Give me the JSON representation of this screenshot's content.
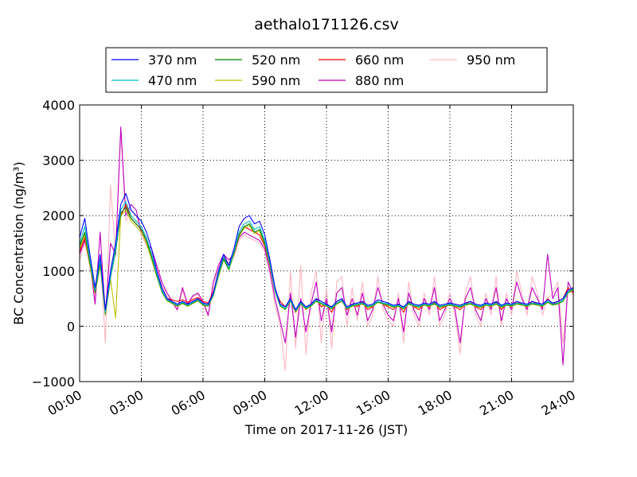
{
  "chart_data": {
    "type": "line",
    "title": "aethalo171126.csv",
    "xlabel": "Time on 2017-11-26 (JST)",
    "ylabel": "BC Concentration (ng/m³)",
    "xlim_hours": [
      0,
      24
    ],
    "ylim": [
      -1000,
      4000
    ],
    "x_ticks": [
      "00:00",
      "03:00",
      "06:00",
      "09:00",
      "12:00",
      "15:00",
      "18:00",
      "21:00",
      "24:00"
    ],
    "y_ticks": [
      "−1000",
      "0",
      "1000",
      "2000",
      "3000",
      "4000"
    ],
    "grid": true,
    "legend_position": "top",
    "x_hours": [
      0.0,
      0.25,
      0.5,
      0.75,
      1.0,
      1.25,
      1.5,
      1.75,
      2.0,
      2.25,
      2.5,
      2.75,
      3.0,
      3.25,
      3.5,
      3.75,
      4.0,
      4.25,
      4.5,
      4.75,
      5.0,
      5.25,
      5.5,
      5.75,
      6.0,
      6.25,
      6.5,
      6.75,
      7.0,
      7.25,
      7.5,
      7.75,
      8.0,
      8.25,
      8.5,
      8.75,
      9.0,
      9.25,
      9.5,
      9.75,
      10.0,
      10.25,
      10.5,
      10.75,
      11.0,
      11.25,
      11.5,
      11.75,
      12.0,
      12.25,
      12.5,
      12.75,
      13.0,
      13.25,
      13.5,
      13.75,
      14.0,
      14.25,
      14.5,
      14.75,
      15.0,
      15.25,
      15.5,
      15.75,
      16.0,
      16.25,
      16.5,
      16.75,
      17.0,
      17.25,
      17.5,
      17.75,
      18.0,
      18.25,
      18.5,
      18.75,
      19.0,
      19.25,
      19.5,
      19.75,
      20.0,
      20.25,
      20.5,
      20.75,
      21.0,
      21.25,
      21.5,
      21.75,
      22.0,
      22.25,
      22.5,
      22.75,
      23.0,
      23.25,
      23.5,
      23.75,
      24.0
    ],
    "series": [
      {
        "name": "370 nm",
        "color": "#0000ff",
        "values": [
          1600,
          1950,
          1300,
          700,
          1300,
          300,
          1000,
          1500,
          2200,
          2400,
          2100,
          2000,
          1900,
          1700,
          1400,
          1000,
          700,
          500,
          450,
          400,
          450,
          400,
          450,
          500,
          420,
          400,
          600,
          1000,
          1300,
          1100,
          1400,
          1800,
          1950,
          2000,
          1850,
          1900,
          1650,
          1200,
          700,
          400,
          350,
          500,
          300,
          450,
          350,
          400,
          500,
          450,
          400,
          350,
          450,
          500,
          350,
          400,
          420,
          450,
          380,
          400,
          480,
          450,
          420,
          380,
          400,
          350,
          450,
          400,
          380,
          420,
          400,
          450,
          380,
          400,
          420,
          400,
          380,
          420,
          450,
          400,
          380,
          420,
          400,
          450,
          380,
          420,
          400,
          450,
          420,
          400,
          450,
          420,
          400,
          480,
          420,
          450,
          500,
          650,
          700
        ],
        "min_spike": null
      },
      {
        "name": "470 nm",
        "color": "#00bfbf",
        "values": [
          1500,
          1800,
          1200,
          650,
          1200,
          250,
          900,
          1400,
          2100,
          2250,
          2000,
          1900,
          1800,
          1600,
          1300,
          950,
          650,
          480,
          430,
          380,
          430,
          380,
          430,
          480,
          400,
          380,
          570,
          950,
          1250,
          1050,
          1350,
          1700,
          1850,
          1900,
          1750,
          1800,
          1550,
          1150,
          650,
          380,
          320,
          470,
          280,
          420,
          330,
          380,
          470,
          420,
          380,
          330,
          420,
          470,
          330,
          380,
          400,
          420,
          360,
          380,
          450,
          420,
          400,
          360,
          380,
          330,
          420,
          380,
          360,
          400,
          380,
          420,
          360,
          380,
          400,
          380,
          360,
          400,
          420,
          380,
          360,
          400,
          380,
          420,
          360,
          400,
          380,
          420,
          400,
          380,
          420,
          400,
          380,
          450,
          400,
          420,
          470,
          620,
          680
        ]
      },
      {
        "name": "520 nm",
        "color": "#008000",
        "values": [
          1450,
          1700,
          1150,
          620,
          1150,
          230,
          880,
          1350,
          2050,
          2150,
          1950,
          1850,
          1750,
          1550,
          1250,
          920,
          630,
          470,
          420,
          370,
          420,
          370,
          420,
          470,
          390,
          370,
          560,
          920,
          1220,
          1030,
          1320,
          1650,
          1800,
          1850,
          1700,
          1750,
          1500,
          1120,
          640,
          370,
          310,
          460,
          270,
          410,
          320,
          370,
          460,
          410,
          370,
          320,
          410,
          460,
          320,
          370,
          390,
          410,
          350,
          370,
          440,
          410,
          390,
          350,
          370,
          320,
          410,
          370,
          350,
          390,
          370,
          410,
          350,
          370,
          390,
          370,
          350,
          390,
          410,
          370,
          350,
          390,
          370,
          410,
          350,
          390,
          370,
          410,
          390,
          370,
          410,
          390,
          370,
          440,
          390,
          410,
          460,
          610,
          670
        ]
      },
      {
        "name": "590 nm",
        "color": "#bfbf00",
        "values": [
          1400,
          1650,
          1100,
          600,
          1100,
          200,
          850,
          150,
          2000,
          2100,
          1900,
          1800,
          1700,
          1500,
          1200,
          900,
          620,
          460,
          410,
          360,
          410,
          360,
          410,
          460,
          380,
          360,
          550,
          900,
          1200,
          1020,
          1300,
          1620,
          1780,
          1820,
          1680,
          1720,
          1480,
          1100,
          630,
          360,
          300,
          450,
          260,
          400,
          310,
          360,
          450,
          400,
          360,
          310,
          400,
          450,
          310,
          360,
          380,
          400,
          340,
          360,
          430,
          400,
          380,
          340,
          360,
          310,
          400,
          360,
          340,
          380,
          360,
          400,
          340,
          360,
          380,
          360,
          340,
          380,
          400,
          360,
          340,
          380,
          360,
          400,
          340,
          380,
          360,
          400,
          380,
          360,
          400,
          380,
          360,
          430,
          380,
          400,
          450,
          600,
          660
        ]
      },
      {
        "name": "660 nm",
        "color": "#ff0000",
        "values": [
          1350,
          1600,
          1100,
          600,
          1100,
          300,
          900,
          1400,
          2000,
          2200,
          1950,
          1850,
          1750,
          1550,
          1250,
          950,
          700,
          500,
          480,
          450,
          480,
          430,
          480,
          520,
          450,
          420,
          620,
          950,
          1250,
          1100,
          1350,
          1650,
          1800,
          1750,
          1700,
          1650,
          1450,
          1100,
          650,
          450,
          350,
          500,
          250,
          450,
          300,
          400,
          500,
          350,
          400,
          250,
          450,
          500,
          300,
          400,
          350,
          450,
          300,
          350,
          450,
          400,
          350,
          300,
          400,
          250,
          450,
          350,
          300,
          400,
          350,
          450,
          300,
          350,
          400,
          350,
          300,
          400,
          450,
          350,
          300,
          400,
          350,
          450,
          300,
          400,
          350,
          450,
          400,
          350,
          450,
          400,
          350,
          500,
          400,
          450,
          500,
          700,
          600
        ]
      },
      {
        "name": "880 nm",
        "color": "#bf00bf",
        "values": [
          1300,
          1550,
          1200,
          400,
          1700,
          200,
          1500,
          1300,
          3600,
          2000,
          2200,
          2100,
          1700,
          1500,
          1400,
          1100,
          800,
          600,
          450,
          300,
          700,
          400,
          550,
          600,
          450,
          200,
          800,
          1100,
          1300,
          1200,
          1300,
          1600,
          1700,
          1650,
          1600,
          1550,
          1400,
          1000,
          500,
          100,
          -300,
          600,
          -200,
          500,
          -100,
          400,
          800,
          100,
          500,
          -100,
          600,
          700,
          200,
          500,
          200,
          600,
          100,
          300,
          700,
          400,
          200,
          100,
          500,
          -100,
          600,
          300,
          100,
          500,
          300,
          700,
          100,
          300,
          500,
          300,
          -300,
          500,
          700,
          300,
          100,
          500,
          300,
          700,
          100,
          500,
          300,
          800,
          500,
          300,
          700,
          500,
          300,
          1300,
          500,
          700,
          -700,
          800,
          600
        ]
      },
      {
        "name": "950 nm",
        "color": "#ffb6c1",
        "values": [
          1200,
          1500,
          1100,
          500,
          1300,
          -300,
          2550,
          1300,
          3550,
          1900,
          2100,
          2000,
          1650,
          1450,
          1350,
          1050,
          750,
          550,
          420,
          280,
          650,
          380,
          520,
          580,
          420,
          180,
          750,
          1050,
          1250,
          1150,
          1250,
          1550,
          1650,
          1600,
          1550,
          1500,
          1350,
          950,
          400,
          0,
          -800,
          1000,
          -400,
          1100,
          -500,
          600,
          1000,
          -300,
          700,
          -400,
          800,
          900,
          0,
          700,
          100,
          800,
          0,
          200,
          900,
          300,
          100,
          0,
          600,
          -300,
          800,
          200,
          0,
          600,
          200,
          900,
          0,
          200,
          600,
          200,
          -500,
          600,
          900,
          200,
          0,
          600,
          200,
          900,
          0,
          600,
          200,
          1000,
          600,
          200,
          900,
          600,
          200,
          500,
          600,
          800,
          -300,
          700,
          550
        ]
      }
    ]
  }
}
